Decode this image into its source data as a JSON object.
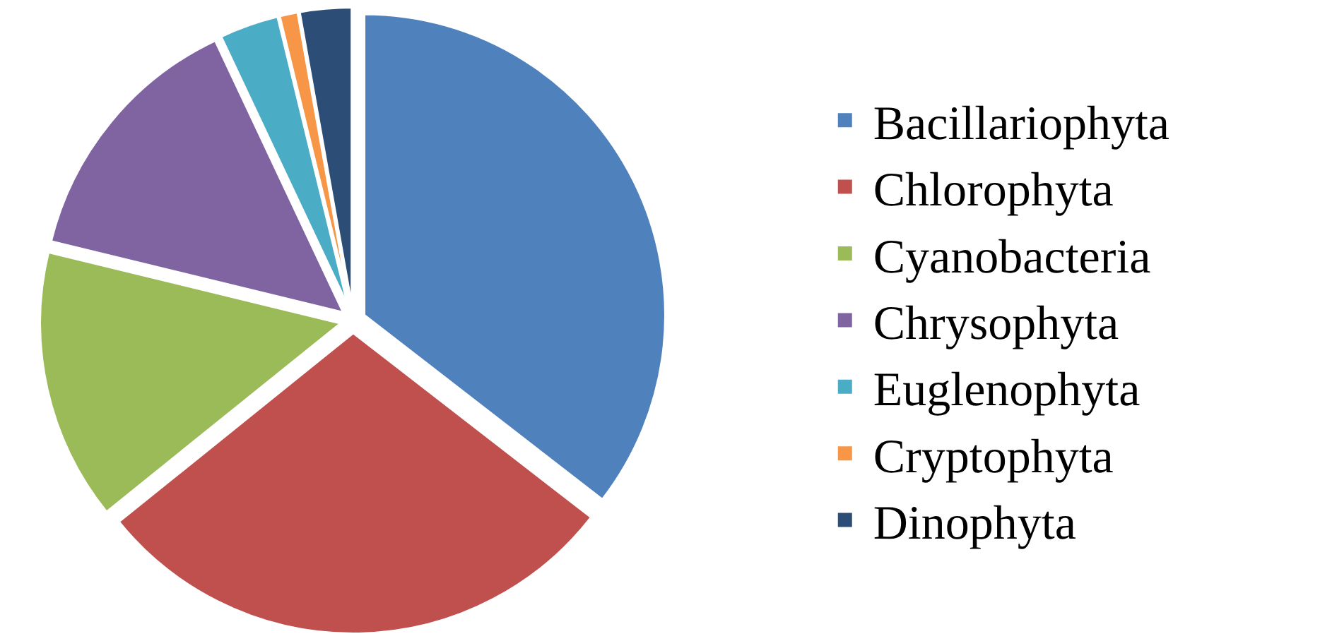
{
  "chart_data": {
    "type": "pie",
    "categories": [
      "Bacillariophyta",
      "Chlorophyta",
      "Cyanobacteria",
      "Chrysophyta",
      "Euglenophyta",
      "Cryptophyta",
      "Dinophyta"
    ],
    "values": [
      35.5,
      28.7,
      14.6,
      14.2,
      3.2,
      1.0,
      2.8
    ],
    "colors": [
      "#4f81bd",
      "#c0504d",
      "#9bbb59",
      "#8064a2",
      "#4bacc6",
      "#f79646",
      "#2c4d75"
    ],
    "legend": "right"
  }
}
